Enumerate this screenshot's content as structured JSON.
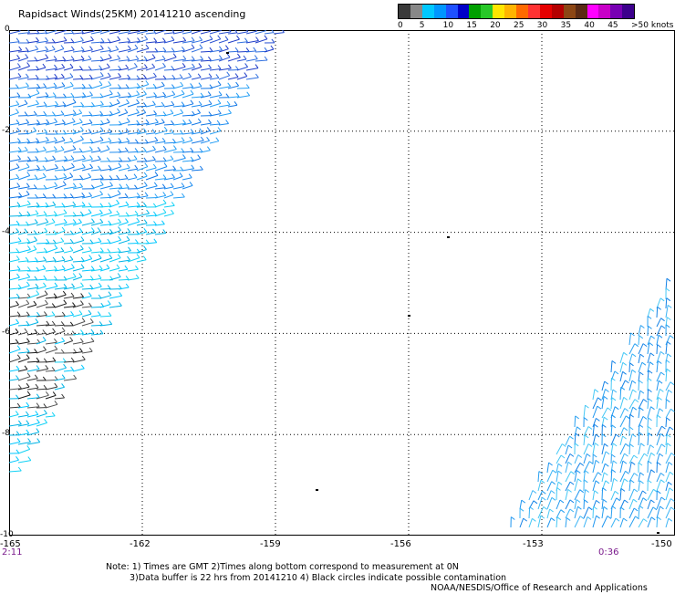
{
  "title": "Rapidsact Winds(25KM) 20141210 ascending",
  "legend": {
    "colors": [
      "#3a3a3a",
      "#888888",
      "#00c8ff",
      "#0096ff",
      "#1e50ff",
      "#0000c8",
      "#00a000",
      "#28c828",
      "#ffe600",
      "#ffb400",
      "#ff6a00",
      "#ff3232",
      "#e60000",
      "#b40000",
      "#8c4614",
      "#5a2a14",
      "#ff00ff",
      "#c800c8",
      "#7800b4",
      "#3c008c"
    ],
    "labels": [
      "0",
      "5",
      "10",
      "15",
      "20",
      "25",
      "30",
      "35",
      "40",
      "45",
      ">50 knots"
    ]
  },
  "axes": {
    "y_labels": [
      "0",
      "-2",
      "-4",
      "-6",
      "-8",
      "-10"
    ],
    "x_labels": [
      "-165",
      "-162",
      "-159",
      "-156",
      "-153",
      "-150"
    ]
  },
  "times": {
    "left": "2:11",
    "right": "0:36"
  },
  "notes": {
    "line1": "Note: 1) Times are GMT 2)Times along bottom correspond to measurement at 0N",
    "line2": "3)Data buffer is 22 hrs from 20141210 4) Black circles indicate possible contamination",
    "line3": "NOAA/NESDIS/Office of Research and Applications"
  }
}
